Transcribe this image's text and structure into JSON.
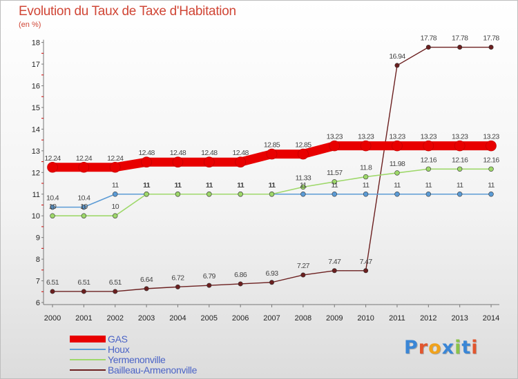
{
  "title": "Evolution du Taux de Taxe d'Habitation",
  "unit": "(en %)",
  "brand": {
    "text": "Proxiti",
    "colors": [
      "#3a86d6",
      "#e2562e",
      "#f0a21c",
      "#3a86d6",
      "#8bc34a",
      "#3a86d6",
      "#e2562e"
    ]
  },
  "chart_data": {
    "type": "line",
    "x": [
      2000,
      2001,
      2002,
      2003,
      2004,
      2005,
      2006,
      2007,
      2008,
      2009,
      2010,
      2011,
      2012,
      2013,
      2014
    ],
    "ylim": [
      6,
      18
    ],
    "yticks": [
      6,
      7,
      8,
      9,
      10,
      11,
      12,
      13,
      14,
      15,
      16,
      17,
      18
    ],
    "grid": false,
    "legend_position": "bottom-left",
    "series": [
      {
        "name": "GAS",
        "color": "#e80000",
        "values": [
          12.24,
          12.24,
          12.24,
          12.48,
          12.48,
          12.48,
          12.48,
          12.85,
          12.85,
          13.23,
          13.23,
          13.23,
          13.23,
          13.23,
          13.23
        ],
        "labels": [
          "12.24",
          "12.24",
          "12.24",
          "12.48",
          "12.48",
          "12.48",
          "12.48",
          "12.85",
          "12.85",
          "13.23",
          "13.23",
          "13.23",
          "13.23",
          "13.23",
          "13.23"
        ]
      },
      {
        "name": "Houx",
        "color": "#5b9bd5",
        "values": [
          10.4,
          10.4,
          11,
          11,
          11,
          11,
          11,
          11,
          11,
          11,
          11,
          11,
          11,
          11,
          11
        ],
        "labels": [
          "10.4",
          "10.4",
          "11",
          "11",
          "11",
          "11",
          "11",
          "11",
          "11",
          "11",
          "11",
          "11",
          "11",
          "11",
          "11"
        ]
      },
      {
        "name": "Yermenonville",
        "color": "#9ed86a",
        "values": [
          10,
          10,
          10,
          11,
          11,
          11,
          11,
          11,
          11.33,
          11.57,
          11.8,
          11.98,
          12.16,
          12.16,
          12.16
        ],
        "labels": [
          "10",
          "10",
          "10",
          "11",
          "11",
          "11",
          "11",
          "11",
          "11.33",
          "11.57",
          "11.8",
          "11.98",
          "12.16",
          "12.16",
          "12.16"
        ]
      },
      {
        "name": "Bailleau-Armenonville",
        "color": "#6b1f1f",
        "values": [
          6.51,
          6.51,
          6.51,
          6.64,
          6.72,
          6.79,
          6.86,
          6.93,
          7.27,
          7.47,
          7.47,
          16.94,
          17.78,
          17.78,
          17.78
        ],
        "labels": [
          "6.51",
          "6.51",
          "6.51",
          "6.64",
          "6.72",
          "6.79",
          "6.86",
          "6.93",
          "7.27",
          "7.47",
          "7.47",
          "16.94",
          "17.78",
          "17.78",
          "17.78"
        ]
      }
    ]
  }
}
